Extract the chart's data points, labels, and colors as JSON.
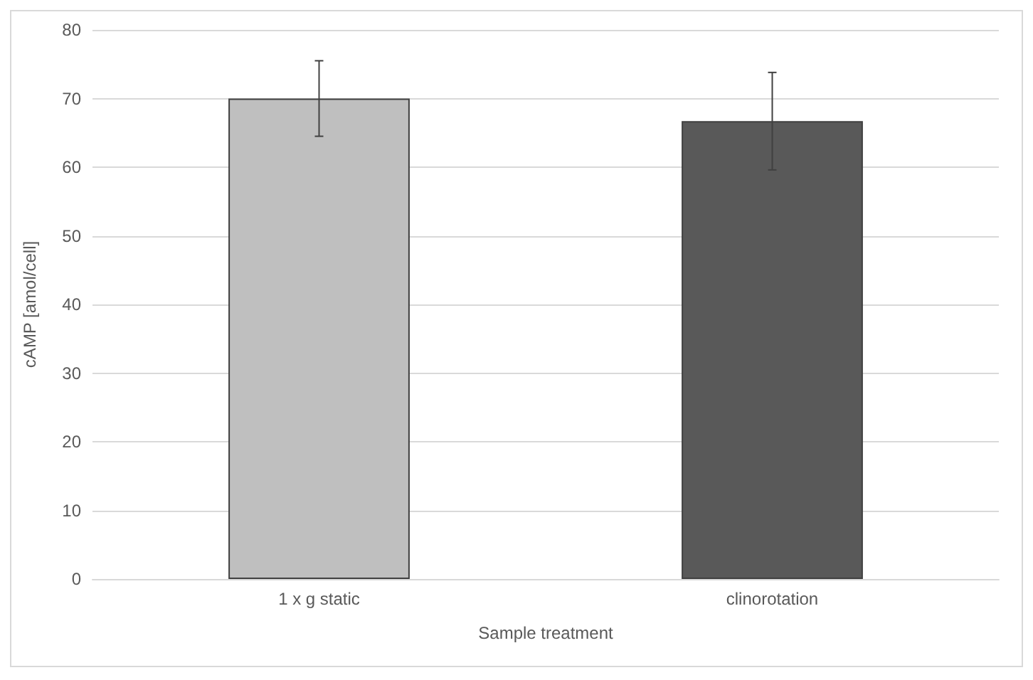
{
  "chart_data": {
    "type": "bar",
    "xlabel": "Sample treatment",
    "ylabel": "cAMP [amol/cell]",
    "categories": [
      "1 x g static",
      "clinorotation"
    ],
    "values": [
      70,
      66.7
    ],
    "colors": [
      "#bfbfbf",
      "#595959"
    ],
    "errors": [
      5.5,
      7.1
    ],
    "ylim": [
      0,
      80
    ],
    "yticks": [
      0,
      10,
      20,
      30,
      40,
      50,
      60,
      70,
      80
    ],
    "grid": "y"
  }
}
